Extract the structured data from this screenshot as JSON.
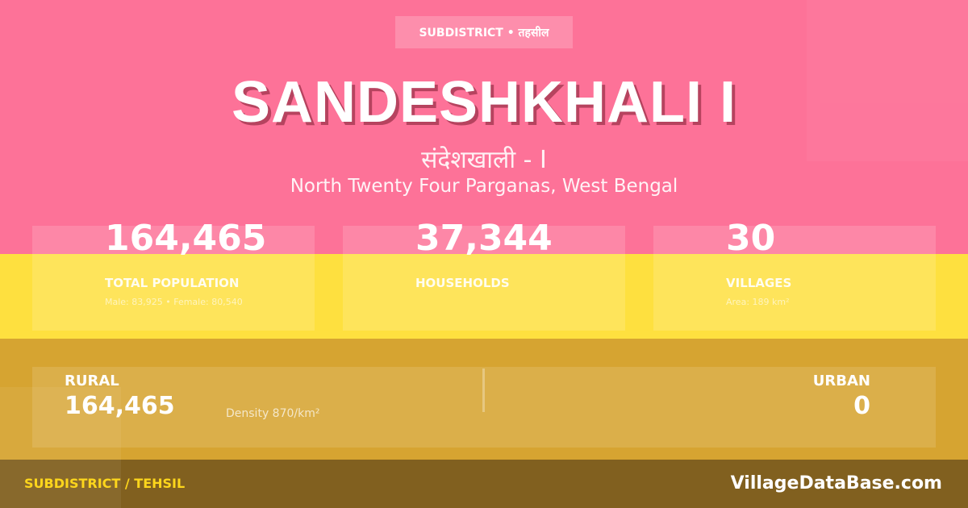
{
  "colors": {
    "pink": "#fd7298",
    "yellow": "#fee03f",
    "gold": "#d6a431",
    "footer": "#81601f",
    "accent": "#fdd61c"
  },
  "header": {
    "badge": "SUBDISTRICT • तहसील",
    "title": "SANDESHKHALI I",
    "title_hindi": "संदेशखाली - I",
    "location": "North Twenty Four Parganas, West Bengal"
  },
  "stats": [
    {
      "value": "164,465",
      "label": "TOTAL POPULATION",
      "sub": "Male: 83,925 • Female: 80,540"
    },
    {
      "value": "37,344",
      "label": "HOUSEHOLDS",
      "sub": ""
    },
    {
      "value": "30",
      "label": "VILLAGES",
      "sub": "Area: 189 km²"
    }
  ],
  "split": {
    "rural_label": "RURAL",
    "rural_value": "164,465",
    "density": "Density 870/km²",
    "urban_label": "URBAN",
    "urban_value": "0"
  },
  "footer": {
    "left": "SUBDISTRICT / TEHSIL",
    "right": "VillageDataBase.com"
  }
}
